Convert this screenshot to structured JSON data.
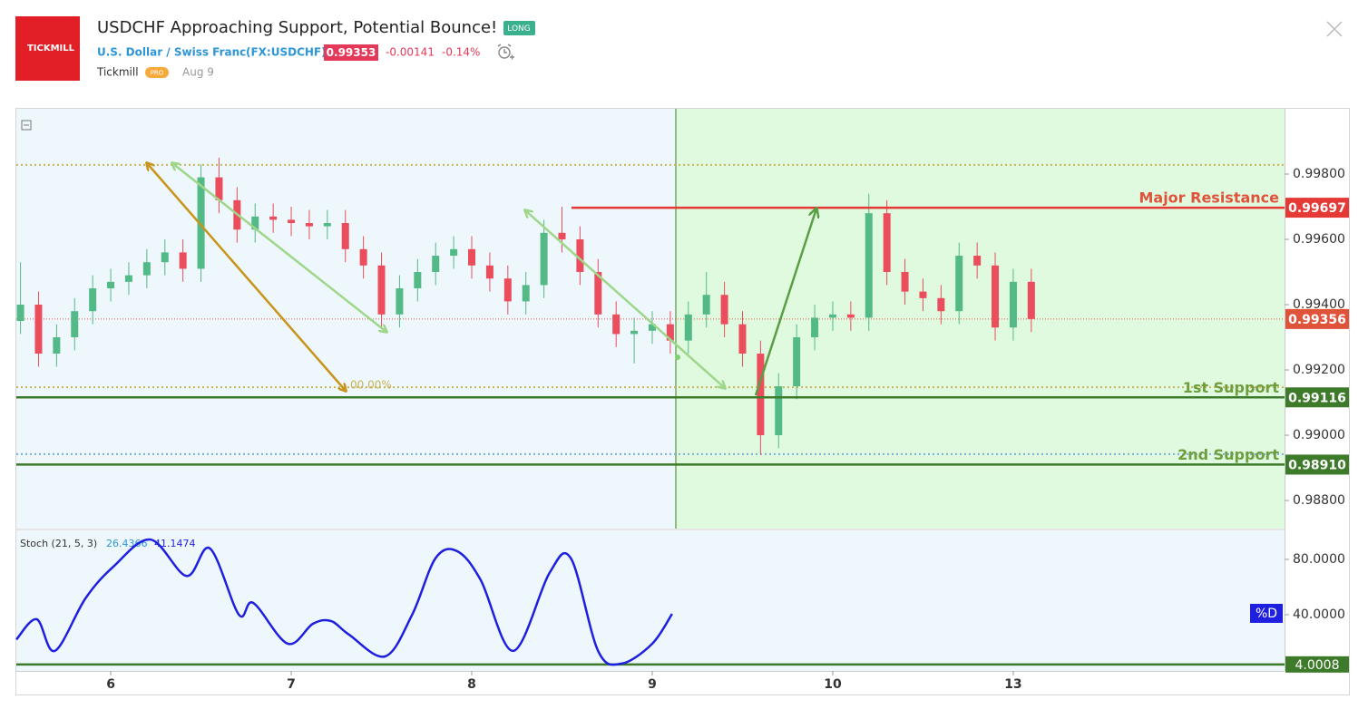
{
  "header": {
    "logo": "TICKMILL",
    "title": "USDCHF Approaching Support, Potential Bounce!",
    "badge": "LONG",
    "symbol_name": "U.S. Dollar / Swiss Franc",
    "symbol": "(FX:USDCHF)",
    "price": "0.99353",
    "change": "-0.00141",
    "change_pct": "-0.14%",
    "author": "Tickmill",
    "author_badge": "PRO",
    "date": "Aug 9"
  },
  "chart_data": [
    {
      "type": "candlestick",
      "up_color": "#53b987",
      "down_color": "#eb4d5c",
      "x": [
        -0.5,
        -0.4,
        -0.3,
        -0.2,
        -0.1,
        0,
        0.1,
        0.2,
        0.3,
        0.4,
        0.5,
        0.6,
        0.7,
        0.8,
        0.9,
        1,
        1.1,
        1.2,
        1.3,
        1.4,
        1.5,
        1.6,
        1.7,
        1.8,
        1.9,
        2,
        2.1,
        2.2,
        2.3,
        2.4,
        2.5,
        2.6,
        2.7,
        2.8,
        2.9,
        3,
        3.1,
        3.2,
        3.3,
        3.4,
        3.5,
        3.6,
        3.7,
        3.8,
        3.9,
        4,
        4.1,
        4.2,
        4.3,
        4.4,
        4.5,
        4.6,
        4.7,
        4.8,
        4.9,
        5,
        5.1
      ],
      "open": [
        0.9935,
        0.994,
        0.9925,
        0.993,
        0.9938,
        0.9945,
        0.9947,
        0.9949,
        0.9953,
        0.9956,
        0.9951,
        0.9979,
        0.9972,
        0.9963,
        0.9967,
        0.9966,
        0.9965,
        0.9964,
        0.9965,
        0.9957,
        0.9952,
        0.9937,
        0.9945,
        0.995,
        0.9955,
        0.9957,
        0.9952,
        0.9948,
        0.9941,
        0.9946,
        0.9962,
        0.996,
        0.995,
        0.9937,
        0.9931,
        0.9932,
        0.9934,
        0.9929,
        0.9937,
        0.9943,
        0.9934,
        0.9925,
        0.99,
        0.9915,
        0.993,
        0.9936,
        0.9937,
        0.9936,
        0.9968,
        0.995,
        0.9944,
        0.9942,
        0.9938,
        0.9955,
        0.9952,
        0.9933,
        0.9947
      ],
      "high": [
        0.9953,
        0.9944,
        0.9934,
        0.9942,
        0.9949,
        0.9951,
        0.9953,
        0.9957,
        0.996,
        0.996,
        0.9983,
        0.9985,
        0.9976,
        0.9971,
        0.9971,
        0.997,
        0.9969,
        0.9969,
        0.9969,
        0.9961,
        0.9956,
        0.9949,
        0.9954,
        0.9959,
        0.9961,
        0.9961,
        0.9956,
        0.9952,
        0.995,
        0.9966,
        0.997,
        0.9964,
        0.9954,
        0.9941,
        0.9936,
        0.9938,
        0.9938,
        0.9941,
        0.995,
        0.9947,
        0.9938,
        0.9929,
        0.9919,
        0.9934,
        0.994,
        0.9941,
        0.9941,
        0.9974,
        0.9972,
        0.9954,
        0.9948,
        0.9946,
        0.9959,
        0.9959,
        0.9956,
        0.9951,
        0.9951
      ],
      "low": [
        0.9931,
        0.9921,
        0.9921,
        0.9926,
        0.9934,
        0.9941,
        0.9943,
        0.9945,
        0.9949,
        0.9947,
        0.9947,
        0.9968,
        0.9959,
        0.9959,
        0.9962,
        0.9961,
        0.996,
        0.996,
        0.9953,
        0.9948,
        0.9933,
        0.9933,
        0.9941,
        0.9946,
        0.9951,
        0.9948,
        0.9944,
        0.9937,
        0.9937,
        0.9942,
        0.9956,
        0.9946,
        0.9933,
        0.9927,
        0.9922,
        0.9928,
        0.9925,
        0.9925,
        0.9933,
        0.993,
        0.9921,
        0.9894,
        0.9896,
        0.9911,
        0.9926,
        0.9932,
        0.9932,
        0.9932,
        0.9946,
        0.994,
        0.9938,
        0.9934,
        0.9934,
        0.9948,
        0.9929,
        0.9929,
        0.99316
      ],
      "close": [
        0.994,
        0.9925,
        0.993,
        0.9938,
        0.9945,
        0.9947,
        0.9949,
        0.9953,
        0.9956,
        0.9951,
        0.9979,
        0.9972,
        0.9963,
        0.9967,
        0.9966,
        0.9965,
        0.9964,
        0.9965,
        0.9957,
        0.9952,
        0.9937,
        0.9945,
        0.995,
        0.9955,
        0.9957,
        0.9952,
        0.9948,
        0.9941,
        0.9946,
        0.9962,
        0.996,
        0.995,
        0.9937,
        0.9931,
        0.9932,
        0.9934,
        0.9929,
        0.9937,
        0.9943,
        0.9934,
        0.9925,
        0.99,
        0.9915,
        0.993,
        0.9936,
        0.9937,
        0.9936,
        0.9968,
        0.995,
        0.9944,
        0.9942,
        0.9938,
        0.9955,
        0.9952,
        0.9933,
        0.9947,
        0.99356
      ],
      "xlim": [
        -0.523,
        6.503
      ],
      "ylim": [
        0.98714,
        1.0
      ],
      "xticks": [
        {
          "value": 0,
          "label": "6"
        },
        {
          "value": 1,
          "label": "7"
        },
        {
          "value": 2,
          "label": "8"
        },
        {
          "value": 3,
          "label": "9"
        },
        {
          "value": 4,
          "label": "10"
        },
        {
          "value": 5,
          "label": "13"
        }
      ],
      "yticks": [
        {
          "value": 0.998,
          "label": "0.99800"
        },
        {
          "value": 0.996,
          "label": "0.99600"
        },
        {
          "value": 0.994,
          "label": "0.99400"
        },
        {
          "value": 0.992,
          "label": "0.99200"
        },
        {
          "value": 0.99,
          "label": "0.99000"
        },
        {
          "value": 0.988,
          "label": "0.98800"
        }
      ],
      "levels": [
        {
          "name": "Major Resistance",
          "value": 0.99697,
          "color": "#e53935",
          "text_color": "#e0533b"
        },
        {
          "name": "1st Support",
          "value": 0.99116,
          "color": "#3d7a2a",
          "text_color": "#6e9e3e"
        },
        {
          "name": "2nd Support",
          "value": 0.9891,
          "price_label": "0.98910",
          "color": "#3d7a2a",
          "text_color": "#6e9e3e"
        }
      ],
      "guides": [
        {
          "value": 0.99828,
          "color": "#c9b458"
        },
        {
          "value": 0.99147,
          "color": "#c9b458",
          "label": "00.00%"
        },
        {
          "value": 0.98942,
          "color": "#7aaed6"
        }
      ],
      "current_price": {
        "value": 0.99356,
        "color": "#e0533b"
      }
    },
    {
      "type": "line",
      "title": "Stoch (21, 5, 3)",
      "legend_values": [
        26.4366,
        41.1474
      ],
      "x": [
        -0.523,
        -0.41,
        -0.31,
        -0.14,
        0.015,
        0.22,
        0.42,
        0.55,
        0.71,
        0.79,
        0.98,
        1.12,
        1.22,
        1.32,
        1.52,
        1.67,
        1.8,
        1.92,
        2.05,
        2.23,
        2.43,
        2.55,
        2.7,
        2.83,
        3.0,
        3.11
      ],
      "series": [
        {
          "name": "%D",
          "color": "#1f1fe0",
          "values": [
            22,
            36.7,
            13.8,
            51.8,
            74.8,
            94.4,
            68,
            87.9,
            40,
            48.5,
            19,
            33.4,
            35.4,
            25.6,
            9.8,
            40,
            81,
            85.9,
            65,
            13.8,
            70,
            80.6,
            13.8,
            4.6,
            19,
            40.6
          ]
        }
      ],
      "xlim": [
        -0.523,
        6.503
      ],
      "ylim": [
        -0.7,
        101
      ],
      "yticks": [
        {
          "value": 80,
          "label": "80.0000"
        },
        {
          "value": 40,
          "label": "40.0000"
        }
      ],
      "level": {
        "value": 4.0008,
        "color": "#3d7a2a"
      }
    }
  ]
}
